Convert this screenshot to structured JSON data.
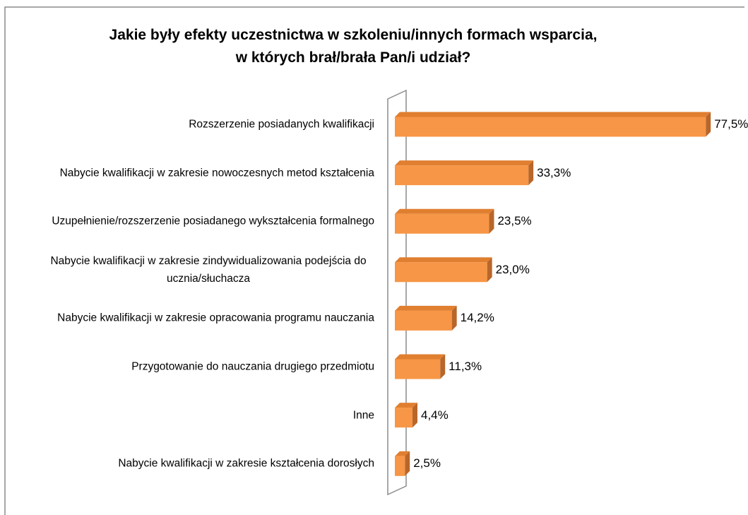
{
  "chart_data": {
    "type": "bar",
    "orientation": "horizontal",
    "title": "Jakie były efekty uczestnictwa w szkoleniu/innych formach wsparcia, w których brał/brała Pan/i udział?",
    "categories": [
      "Rozszerzenie posiadanych kwalifikacji",
      "Nabycie kwalifikacji w zakresie nowoczesnych metod kształcenia",
      "Uzupełnienie/rozszerzenie posiadanego wykształcenia formalnego",
      "Nabycie kwalifikacji w zakresie zindywidualizowania podejścia do ucznia/słuchacza",
      "Nabycie kwalifikacji w zakresie opracowania programu nauczania",
      "Przygotowanie do nauczania drugiego przedmiotu",
      "Inne",
      "Nabycie kwalifikacji w zakresie kształcenia dorosłych"
    ],
    "values": [
      77.5,
      33.3,
      23.5,
      23.0,
      14.2,
      11.3,
      4.4,
      2.5
    ],
    "value_labels": [
      "77,5%",
      "33,3%",
      "23,5%",
      "23,0%",
      "14,2%",
      "11,3%",
      "4,4%",
      "2,5%"
    ],
    "color": "#f79646"
  }
}
